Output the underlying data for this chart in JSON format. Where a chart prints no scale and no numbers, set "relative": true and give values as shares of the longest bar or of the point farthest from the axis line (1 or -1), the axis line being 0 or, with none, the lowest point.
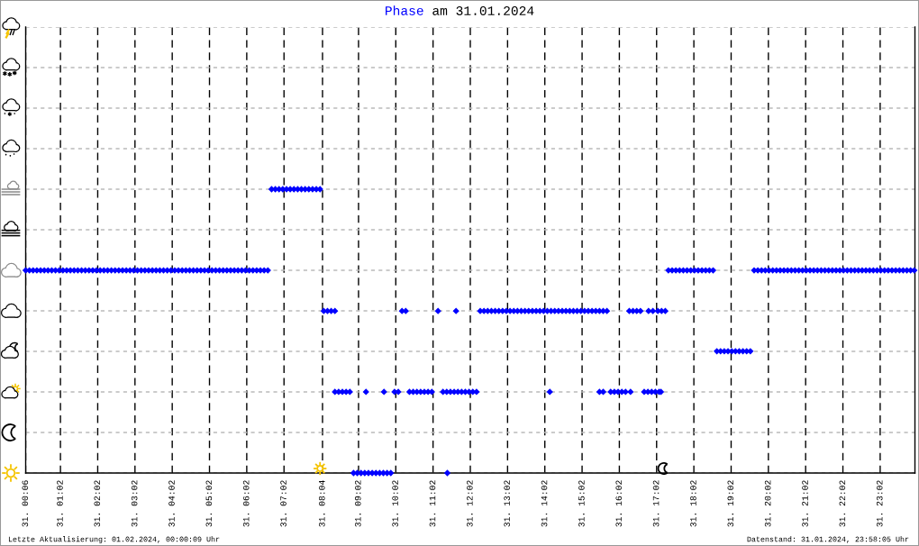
{
  "chart_data": {
    "type": "scatter",
    "title": "am 31.01.2024",
    "relative": true,
    "series": [
      {
        "name": "Phase",
        "color": "#0000ff",
        "x": [
          "2024-01-31T00:06",
          "2024-01-31T00:12",
          "2024-01-31T00:18",
          "2024-01-31T00:24",
          "2024-01-31T00:30",
          "2024-01-31T00:36",
          "2024-01-31T00:42",
          "2024-01-31T00:48",
          "2024-01-31T00:54",
          "2024-01-31T01:00",
          "2024-01-31T01:06",
          "2024-01-31T01:12",
          "2024-01-31T01:18",
          "2024-01-31T01:24",
          "2024-01-31T01:30",
          "2024-01-31T01:36",
          "2024-01-31T01:42",
          "2024-01-31T01:48",
          "2024-01-31T01:54",
          "2024-01-31T02:00",
          "2024-01-31T02:06",
          "2024-01-31T02:12",
          "2024-01-31T02:18",
          "2024-01-31T02:24",
          "2024-01-31T02:30",
          "2024-01-31T02:36",
          "2024-01-31T02:42",
          "2024-01-31T02:48",
          "2024-01-31T02:54",
          "2024-01-31T03:00",
          "2024-01-31T03:06",
          "2024-01-31T03:12",
          "2024-01-31T03:18",
          "2024-01-31T03:24",
          "2024-01-31T03:30",
          "2024-01-31T03:36",
          "2024-01-31T03:42",
          "2024-01-31T03:48",
          "2024-01-31T03:54",
          "2024-01-31T04:00",
          "2024-01-31T04:06",
          "2024-01-31T04:12",
          "2024-01-31T04:18",
          "2024-01-31T04:24",
          "2024-01-31T04:30",
          "2024-01-31T04:36",
          "2024-01-31T04:42",
          "2024-01-31T04:48",
          "2024-01-31T04:54",
          "2024-01-31T05:00",
          "2024-01-31T05:06",
          "2024-01-31T05:12",
          "2024-01-31T05:18",
          "2024-01-31T05:24",
          "2024-01-31T05:30",
          "2024-01-31T05:36",
          "2024-01-31T05:42",
          "2024-01-31T05:48",
          "2024-01-31T05:54",
          "2024-01-31T06:00",
          "2024-01-31T06:06",
          "2024-01-31T06:12",
          "2024-01-31T06:18",
          "2024-01-31T06:24",
          "2024-01-31T06:30",
          "2024-01-31T06:36",
          "2024-01-31T06:42",
          "2024-01-31T06:48",
          "2024-01-31T06:54",
          "2024-01-31T07:00",
          "2024-01-31T07:06",
          "2024-01-31T07:12",
          "2024-01-31T07:18",
          "2024-01-31T07:24",
          "2024-01-31T07:30",
          "2024-01-31T07:36",
          "2024-01-31T07:42",
          "2024-01-31T07:48",
          "2024-01-31T07:54",
          "2024-01-31T08:00",
          "2024-01-31T08:06",
          "2024-01-31T08:12",
          "2024-01-31T08:18",
          "2024-01-31T08:24",
          "2024-01-31T08:24",
          "2024-01-31T08:30",
          "2024-01-31T08:36",
          "2024-01-31T08:42",
          "2024-01-31T08:48",
          "2024-01-31T08:54",
          "2024-01-31T09:00",
          "2024-01-31T09:06",
          "2024-01-31T09:12",
          "2024-01-31T09:18",
          "2024-01-31T09:24",
          "2024-01-31T09:30",
          "2024-01-31T09:36",
          "2024-01-31T09:42",
          "2024-01-31T09:48",
          "2024-01-31T09:54",
          "2024-01-31T09:14",
          "2024-01-31T09:43",
          "2024-01-31T10:00",
          "2024-01-31T10:06",
          "2024-01-31T10:24",
          "2024-01-31T10:30",
          "2024-01-31T10:36",
          "2024-01-31T10:42",
          "2024-01-31T10:48",
          "2024-01-31T10:54",
          "2024-01-31T11:00",
          "2024-01-31T10:12",
          "2024-01-31T10:18",
          "2024-01-31T11:10",
          "2024-01-31T11:39",
          "2024-01-31T11:18",
          "2024-01-31T11:24",
          "2024-01-31T11:30",
          "2024-01-31T11:36",
          "2024-01-31T11:42",
          "2024-01-31T11:48",
          "2024-01-31T11:54",
          "2024-01-31T12:00",
          "2024-01-31T12:06",
          "2024-01-31T12:12",
          "2024-01-31T11:25",
          "2024-01-31T12:18",
          "2024-01-31T12:24",
          "2024-01-31T12:30",
          "2024-01-31T12:36",
          "2024-01-31T12:42",
          "2024-01-31T12:48",
          "2024-01-31T12:54",
          "2024-01-31T13:00",
          "2024-01-31T13:06",
          "2024-01-31T13:12",
          "2024-01-31T13:18",
          "2024-01-31T13:24",
          "2024-01-31T13:30",
          "2024-01-31T13:36",
          "2024-01-31T13:42",
          "2024-01-31T13:48",
          "2024-01-31T13:54",
          "2024-01-31T14:00",
          "2024-01-31T14:06",
          "2024-01-31T14:12",
          "2024-01-31T14:18",
          "2024-01-31T14:24",
          "2024-01-31T14:30",
          "2024-01-31T14:36",
          "2024-01-31T14:42",
          "2024-01-31T14:48",
          "2024-01-31T14:54",
          "2024-01-31T15:00",
          "2024-01-31T15:06",
          "2024-01-31T15:12",
          "2024-01-31T15:18",
          "2024-01-31T15:24",
          "2024-01-31T15:30",
          "2024-01-31T15:36",
          "2024-01-31T15:42",
          "2024-01-31T14:10",
          "2024-01-31T15:30",
          "2024-01-31T15:36",
          "2024-01-31T15:48",
          "2024-01-31T15:54",
          "2024-01-31T16:00",
          "2024-01-31T16:06",
          "2024-01-31T16:12",
          "2024-01-31T16:20",
          "2024-01-31T16:42",
          "2024-01-31T16:48",
          "2024-01-31T16:54",
          "2024-01-31T17:00",
          "2024-01-31T17:06",
          "2024-01-31T17:09",
          "2024-01-31T16:18",
          "2024-01-31T16:24",
          "2024-01-31T16:30",
          "2024-01-31T16:36",
          "2024-01-31T16:49",
          "2024-01-31T16:56",
          "2024-01-31T17:04",
          "2024-01-31T17:10",
          "2024-01-31T17:16",
          "2024-01-31T17:21",
          "2024-01-31T17:27",
          "2024-01-31T17:33",
          "2024-01-31T17:39",
          "2024-01-31T17:45",
          "2024-01-31T17:51",
          "2024-01-31T17:57",
          "2024-01-31T18:03",
          "2024-01-31T18:09",
          "2024-01-31T18:15",
          "2024-01-31T18:21",
          "2024-01-31T18:27",
          "2024-01-31T18:33",
          "2024-01-31T18:39",
          "2024-01-31T18:45",
          "2024-01-31T18:51",
          "2024-01-31T18:57",
          "2024-01-31T19:03",
          "2024-01-31T19:09",
          "2024-01-31T19:15",
          "2024-01-31T19:21",
          "2024-01-31T19:27",
          "2024-01-31T19:33",
          "2024-01-31T19:39",
          "2024-01-31T19:45",
          "2024-01-31T19:51",
          "2024-01-31T19:57",
          "2024-01-31T20:03",
          "2024-01-31T20:09",
          "2024-01-31T20:15",
          "2024-01-31T20:21",
          "2024-01-31T20:27",
          "2024-01-31T20:33",
          "2024-01-31T20:39",
          "2024-01-31T20:45",
          "2024-01-31T20:51",
          "2024-01-31T20:57",
          "2024-01-31T21:03",
          "2024-01-31T21:09",
          "2024-01-31T21:15",
          "2024-01-31T21:21",
          "2024-01-31T21:27",
          "2024-01-31T21:33",
          "2024-01-31T21:39",
          "2024-01-31T21:45",
          "2024-01-31T21:51",
          "2024-01-31T21:57",
          "2024-01-31T22:03",
          "2024-01-31T22:09",
          "2024-01-31T22:15",
          "2024-01-31T22:21",
          "2024-01-31T22:27",
          "2024-01-31T22:33",
          "2024-01-31T22:39",
          "2024-01-31T22:45",
          "2024-01-31T22:51",
          "2024-01-31T22:57",
          "2024-01-31T23:03",
          "2024-01-31T23:09",
          "2024-01-31T23:15",
          "2024-01-31T23:21",
          "2024-01-31T23:27",
          "2024-01-31T23:33",
          "2024-01-31T23:39",
          "2024-01-31T23:45",
          "2024-01-31T23:51",
          "2024-01-31T23:57"
        ],
        "values": [
          0.714,
          0.714,
          0.714,
          0.714,
          0.714,
          0.714,
          0.714,
          0.714,
          0.714,
          0.714,
          0.714,
          0.714,
          0.714,
          0.714,
          0.714,
          0.714,
          0.714,
          0.714,
          0.714,
          0.714,
          0.714,
          0.714,
          0.714,
          0.714,
          0.714,
          0.714,
          0.714,
          0.714,
          0.714,
          0.714,
          0.714,
          0.714,
          0.714,
          0.714,
          0.714,
          0.714,
          0.714,
          0.714,
          0.714,
          0.714,
          0.714,
          0.714,
          0.714,
          0.714,
          0.714,
          0.714,
          0.714,
          0.714,
          0.714,
          0.714,
          0.714,
          0.714,
          0.714,
          0.714,
          0.714,
          0.714,
          0.714,
          0.714,
          0.714,
          0.714,
          0.714,
          0.714,
          0.714,
          0.714,
          0.714,
          0.714,
          1,
          1,
          1,
          1,
          1,
          1,
          1,
          1,
          1,
          1,
          1,
          1,
          1,
          1,
          0.571,
          0.571,
          0.571,
          0.571,
          0.286,
          0.286,
          0.286,
          0.286,
          0.286,
          0,
          0,
          0,
          0,
          0,
          0,
          0,
          0,
          0,
          0,
          0,
          0.286,
          0.286,
          0.286,
          0.286,
          0.286,
          0.286,
          0.286,
          0.286,
          0.286,
          0.286,
          0.286,
          0.571,
          0.571,
          0.571,
          0.571,
          0.286,
          0.286,
          0.286,
          0.286,
          0.286,
          0.286,
          0.286,
          0.286,
          0.286,
          0.286,
          0,
          0.571,
          0.571,
          0.571,
          0.571,
          0.571,
          0.571,
          0.571,
          0.571,
          0.571,
          0.571,
          0.571,
          0.571,
          0.571,
          0.571,
          0.571,
          0.571,
          0.571,
          0.571,
          0.571,
          0.571,
          0.571,
          0.571,
          0.571,
          0.571,
          0.571,
          0.571,
          0.571,
          0.571,
          0.571,
          0.571,
          0.571,
          0.571,
          0.571,
          0.571,
          0.571,
          0.286,
          0.286,
          0.286,
          0.286,
          0.286,
          0.286,
          0.286,
          0.286,
          0.286,
          0.286,
          0.286,
          0.286,
          0.286,
          0.286,
          0.286,
          0.571,
          0.571,
          0.571,
          0.571,
          0.571,
          0.571,
          0.571,
          0.571,
          0.571,
          0.714,
          0.714,
          0.714,
          0.714,
          0.714,
          0.714,
          0.714,
          0.714,
          0.714,
          0.714,
          0.714,
          0.714,
          0.714,
          0.429,
          0.429,
          0.429,
          0.429,
          0.429,
          0.429,
          0.429,
          0.429,
          0.429,
          0.429,
          0.714,
          0.714,
          0.714,
          0.714,
          0.714,
          0.714,
          0.714,
          0.714,
          0.714,
          0.714,
          0.714,
          0.714,
          0.714,
          0.714,
          0.714,
          0.714,
          0.714,
          0.714,
          0.714,
          0.714,
          0.714,
          0.714,
          0.714,
          0.714,
          0.714,
          0.714,
          0.714,
          0.714,
          0.714,
          0.714,
          0.714,
          0.714,
          0.714,
          0.714,
          0.714,
          0.714,
          0.714,
          0.714,
          0.714,
          0.714,
          0.714,
          0.714,
          0.714,
          0.714
        ]
      }
    ],
    "xlim": [
      "2024-01-31T00:06",
      "2024-01-31T23:58"
    ],
    "xticks": [
      {
        "value": "2024-01-31T00:06",
        "label": "31. 00:06"
      },
      {
        "value": "2024-01-31T01:02",
        "label": "31. 01:02"
      },
      {
        "value": "2024-01-31T02:02",
        "label": "31. 02:02"
      },
      {
        "value": "2024-01-31T03:02",
        "label": "31. 03:02"
      },
      {
        "value": "2024-01-31T04:02",
        "label": "31. 04:02"
      },
      {
        "value": "2024-01-31T05:02",
        "label": "31. 05:02"
      },
      {
        "value": "2024-01-31T06:02",
        "label": "31. 06:02"
      },
      {
        "value": "2024-01-31T07:02",
        "label": "31. 07:02"
      },
      {
        "value": "2024-01-31T08:04",
        "label": "31. 08:04"
      },
      {
        "value": "2024-01-31T09:02",
        "label": "31. 09:02"
      },
      {
        "value": "2024-01-31T10:02",
        "label": "31. 10:02"
      },
      {
        "value": "2024-01-31T11:02",
        "label": "31. 11:02"
      },
      {
        "value": "2024-01-31T12:02",
        "label": "31. 12:02"
      },
      {
        "value": "2024-01-31T13:02",
        "label": "31. 13:02"
      },
      {
        "value": "2024-01-31T14:02",
        "label": "31. 14:02"
      },
      {
        "value": "2024-01-31T15:02",
        "label": "31. 15:02"
      },
      {
        "value": "2024-01-31T16:02",
        "label": "31. 16:02"
      },
      {
        "value": "2024-01-31T17:02",
        "label": "31. 17:02"
      },
      {
        "value": "2024-01-31T18:02",
        "label": "31. 18:02"
      },
      {
        "value": "2024-01-31T19:02",
        "label": "31. 19:02"
      },
      {
        "value": "2024-01-31T20:02",
        "label": "31. 20:02"
      },
      {
        "value": "2024-01-31T21:02",
        "label": "31. 21:02"
      },
      {
        "value": "2024-01-31T22:02",
        "label": "31. 22:02"
      },
      {
        "value": "2024-01-31T23:02",
        "label": "31. 23:02"
      }
    ],
    "grid": true,
    "marker": "diamond",
    "annotations": [
      "Letzte Aktualisierung: 01.02.2024, 00:00:09 Uhr",
      "Datenstand: 31.01.2024, 23:58:05 Uhr"
    ]
  }
}
